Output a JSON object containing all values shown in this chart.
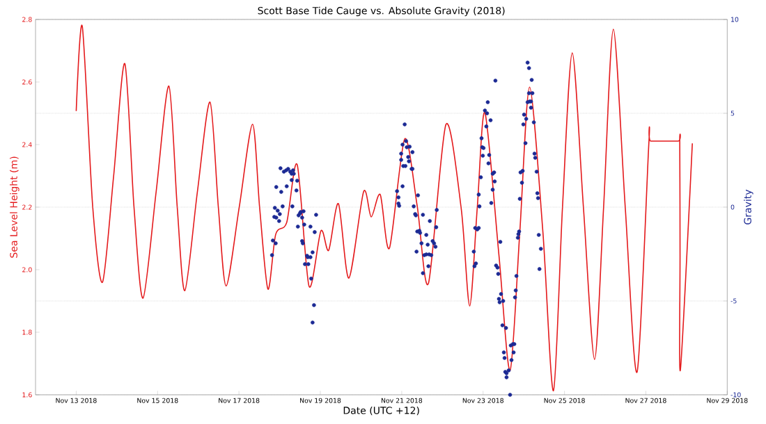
{
  "chart_data": {
    "type": "line",
    "title": "Scott Base Tide Cauge vs. Absolute Gravity (2018)",
    "xlabel": "Date (UTC +12)",
    "ylabel": "Sea Level Height (m)",
    "y2label": "Gravity",
    "xlim": [
      "2018-11-12",
      "2018-11-29"
    ],
    "xticks": [
      {
        "value": "2018-11-13",
        "label": "Nov 13 2018"
      },
      {
        "value": "2018-11-15",
        "label": "Nov 15 2018"
      },
      {
        "value": "2018-11-17",
        "label": "Nov 17 2018"
      },
      {
        "value": "2018-11-19",
        "label": "Nov 19 2018"
      },
      {
        "value": "2018-11-21",
        "label": "Nov 21 2018"
      },
      {
        "value": "2018-11-23",
        "label": "Nov 23 2018"
      },
      {
        "value": "2018-11-25",
        "label": "Nov 25 2018"
      },
      {
        "value": "2018-11-27",
        "label": "Nov 27 2018"
      },
      {
        "value": "2018-11-29",
        "label": "Nov 29 2018"
      }
    ],
    "ylim": [
      1.6,
      2.8
    ],
    "yticks": [
      1.6,
      1.8,
      {
        "value": 2.0,
        "label": "2.0"
      },
      2.2,
      2.4,
      2.6,
      2.8
    ],
    "y2lim": [
      -10,
      10
    ],
    "y2ticks": [
      -10,
      -5,
      0,
      5,
      10
    ],
    "grid": "y",
    "legend": false,
    "line_style": "solid",
    "series": [
      {
        "color": "#e41a1c",
        "marker": "none",
        "x": [
          "2018-11-13T00:00",
          "2018-11-13T03:35",
          "2018-11-13T09:45",
          "2018-11-13T15:30",
          "2018-11-13T22:05",
          "2018-11-14T04:40",
          "2018-11-14T10:05",
          "2018-11-14T15:25",
          "2018-11-14T23:10",
          "2018-11-15T06:40",
          "2018-11-15T11:35",
          "2018-11-15T16:05",
          "2018-11-15T23:30",
          "2018-11-16T06:55",
          "2018-11-16T11:50",
          "2018-11-16T16:25",
          "2018-11-17T00:10",
          "2018-11-17T08:00",
          "2018-11-17T12:10",
          "2018-11-17T17:05",
          "2018-11-17T21:40",
          "2018-11-18T04:10",
          "2018-11-18T10:20",
          "2018-11-18T17:20",
          "2018-11-19T00:20",
          "2018-11-19T04:55",
          "2018-11-19T10:40",
          "2018-11-19T16:50",
          "2018-11-20T01:30",
          "2018-11-20T06:00",
          "2018-11-20T11:20",
          "2018-11-20T16:45",
          "2018-11-21T01:45",
          "2018-11-21T09:10",
          "2018-11-21T15:45",
          "2018-11-22T02:05",
          "2018-11-22T11:05",
          "2018-11-22T16:05",
          "2018-11-22T20:35",
          "2018-11-23T01:05",
          "2018-11-23T09:20",
          "2018-11-23T15:55",
          "2018-11-23T21:40",
          "2018-11-24T03:25",
          "2018-11-24T11:15",
          "2018-11-24T17:30",
          "2018-11-24T22:50",
          "2018-11-25T04:35",
          "2018-11-25T11:10",
          "2018-11-25T17:45",
          "2018-11-25T23:05",
          "2018-11-26T04:50",
          "2018-11-26T11:50",
          "2018-11-26T18:50",
          "2018-11-27T01:50",
          "2018-11-27T03:00",
          "2018-11-27T19:00",
          "2018-11-27T20:00",
          "2018-11-27T20:10",
          "2018-11-27T20:25",
          "2018-11-28T03:25"
        ],
        "values": [
          2.507,
          2.778,
          2.2,
          1.96,
          2.3,
          2.659,
          2.2,
          1.909,
          2.25,
          2.587,
          2.2,
          1.933,
          2.25,
          2.536,
          2.2,
          1.948,
          2.2,
          2.465,
          2.2,
          1.938,
          2.113,
          2.151,
          2.336,
          1.947,
          2.124,
          2.062,
          2.211,
          1.973,
          2.249,
          2.169,
          2.24,
          2.069,
          2.418,
          2.202,
          1.956,
          2.464,
          2.196,
          1.884,
          2.2,
          2.502,
          2.047,
          1.678,
          2.122,
          2.584,
          2.122,
          1.613,
          2.2,
          2.693,
          2.2,
          1.713,
          2.2,
          2.769,
          2.2,
          1.673,
          2.411,
          2.411,
          2.411,
          2.411,
          2.05,
          1.682,
          2.404
        ]
      },
      {
        "type": "scatter",
        "axis": "y2",
        "color": "#1c2a94",
        "marker": "circle",
        "x": [
          "2018-11-17T19:30",
          "2018-11-17T20:00",
          "2018-11-17T20:50",
          "2018-11-17T21:10",
          "2018-11-17T22:00",
          "2018-11-17T21:40",
          "2018-11-17T22:00",
          "2018-11-17T22:50",
          "2018-11-17T23:40",
          "2018-11-18T00:05",
          "2018-11-18T00:30",
          "2018-11-18T00:55",
          "2018-11-18T01:45",
          "2018-11-18T02:30",
          "2018-11-18T03:50",
          "2018-11-18T04:10",
          "2018-11-18T05:00",
          "2018-11-18T06:15",
          "2018-11-18T07:05",
          "2018-11-18T07:05",
          "2018-11-18T07:30",
          "2018-11-18T07:55",
          "2018-11-18T08:20",
          "2018-11-18T09:55",
          "2018-11-18T10:20",
          "2018-11-18T10:45",
          "2018-11-18T11:10",
          "2018-11-18T12:00",
          "2018-11-18T12:25",
          "2018-11-18T13:15",
          "2018-11-18T13:15",
          "2018-11-18T13:40",
          "2018-11-18T14:05",
          "2018-11-18T14:30",
          "2018-11-18T14:55",
          "2018-11-18T16:10",
          "2018-11-18T16:35",
          "2018-11-18T16:55",
          "2018-11-18T18:10",
          "2018-11-18T18:10",
          "2018-11-18T18:35",
          "2018-11-18T19:25",
          "2018-11-18T19:25",
          "2018-11-18T20:15",
          "2018-11-18T20:40",
          "2018-11-18T21:30",
          "2018-11-20T21:15",
          "2018-11-20T22:05",
          "2018-11-20T22:05",
          "2018-11-20T22:30",
          "2018-11-20T23:40",
          "2018-11-20T23:40",
          "2018-11-21T00:30",
          "2018-11-21T00:30",
          "2018-11-21T00:55",
          "2018-11-21T01:45",
          "2018-11-21T02:10",
          "2018-11-21T02:35",
          "2018-11-21T03:00",
          "2018-11-21T03:50",
          "2018-11-21T04:15",
          "2018-11-21T04:40",
          "2018-11-21T05:50",
          "2018-11-21T06:20",
          "2018-11-21T06:20",
          "2018-11-21T07:05",
          "2018-11-21T07:55",
          "2018-11-21T08:20",
          "2018-11-21T08:45",
          "2018-11-21T09:10",
          "2018-11-21T09:35",
          "2018-11-21T10:25",
          "2018-11-21T10:50",
          "2018-11-21T11:40",
          "2018-11-21T12:30",
          "2018-11-21T12:30",
          "2018-11-21T13:20",
          "2018-11-21T14:30",
          "2018-11-21T14:30",
          "2018-11-21T15:20",
          "2018-11-21T15:45",
          "2018-11-21T16:10",
          "2018-11-21T16:35",
          "2018-11-21T17:25",
          "2018-11-21T18:15",
          "2018-11-21T19:05",
          "2018-11-21T19:55",
          "2018-11-21T20:20",
          "2018-11-21T20:40",
          "2018-11-22T18:30",
          "2018-11-22T18:55",
          "2018-11-22T19:20",
          "2018-11-22T19:45",
          "2018-11-22T20:35",
          "2018-11-22T21:25",
          "2018-11-22T21:25",
          "2018-11-22T21:50",
          "2018-11-22T22:40",
          "2018-11-22T23:05",
          "2018-11-22T23:30",
          "2018-11-22T23:50",
          "2018-11-23T00:15",
          "2018-11-23T01:05",
          "2018-11-23T01:55",
          "2018-11-23T02:20",
          "2018-11-23T02:45",
          "2018-11-23T03:10",
          "2018-11-23T03:35",
          "2018-11-23T04:25",
          "2018-11-23T04:50",
          "2018-11-23T05:40",
          "2018-11-23T05:40",
          "2018-11-23T06:30",
          "2018-11-23T06:50",
          "2018-11-23T07:15",
          "2018-11-23T07:40",
          "2018-11-23T08:30",
          "2018-11-23T08:55",
          "2018-11-23T09:20",
          "2018-11-23T09:45",
          "2018-11-23T10:10",
          "2018-11-23T10:35",
          "2018-11-23T11:25",
          "2018-11-23T11:50",
          "2018-11-23T12:15",
          "2018-11-23T12:40",
          "2018-11-23T13:05",
          "2018-11-23T13:30",
          "2018-11-23T13:50",
          "2018-11-23T13:50",
          "2018-11-23T15:05",
          "2018-11-23T15:55",
          "2018-11-23T16:20",
          "2018-11-23T16:45",
          "2018-11-23T17:35",
          "2018-11-23T18:00",
          "2018-11-23T18:25",
          "2018-11-23T18:50",
          "2018-11-23T19:15",
          "2018-11-23T19:40",
          "2018-11-23T20:30",
          "2018-11-23T20:50",
          "2018-11-23T21:15",
          "2018-11-23T21:40",
          "2018-11-23T22:05",
          "2018-11-23T22:55",
          "2018-11-23T23:20",
          "2018-11-23T23:45",
          "2018-11-24T00:10",
          "2018-11-24T01:00",
          "2018-11-24T01:25",
          "2018-11-24T02:15",
          "2018-11-24T02:15",
          "2018-11-24T03:05",
          "2018-11-24T03:05",
          "2018-11-24T03:25",
          "2018-11-24T04:15",
          "2018-11-24T04:15",
          "2018-11-24T04:40",
          "2018-11-24T05:05",
          "2018-11-24T05:55",
          "2018-11-24T06:20",
          "2018-11-24T06:45",
          "2018-11-24T07:35",
          "2018-11-24T08:00",
          "2018-11-24T08:25",
          "2018-11-24T08:50",
          "2018-11-24T09:15",
          "2018-11-24T10:05"
        ],
        "values": [
          -2.56,
          -1.78,
          -0.52,
          -0.04,
          1.07,
          -1.93,
          -0.56,
          -0.19,
          -0.74,
          -0.37,
          2.07,
          0.81,
          0.04,
          1.89,
          1.96,
          1.11,
          2.04,
          1.89,
          1.78,
          1.44,
          0.04,
          1.96,
          1.78,
          0.89,
          1.41,
          -1.04,
          -0.44,
          -0.33,
          -0.26,
          -0.56,
          -1.81,
          -1.93,
          -0.22,
          -0.93,
          -3.04,
          -2.59,
          -2.67,
          -3.04,
          -1.04,
          -2.67,
          -3.81,
          -2.41,
          -6.15,
          -5.22,
          -1.33,
          -0.41,
          0.85,
          0.52,
          0.19,
          0.07,
          2.52,
          2.85,
          3.33,
          1.11,
          2.19,
          4.41,
          2.19,
          3.52,
          3.19,
          2.67,
          2.44,
          3.22,
          2.04,
          2.93,
          2.04,
          0.04,
          -0.37,
          -0.44,
          -2.37,
          -1.3,
          0.63,
          -1.26,
          -1.37,
          -1.93,
          -0.41,
          -3.52,
          -2.56,
          -1.48,
          -2.52,
          -2.0,
          -3.15,
          -2.52,
          -0.74,
          -2.56,
          -1.81,
          -1.93,
          -2.11,
          -1.07,
          -0.15,
          -2.37,
          -3.15,
          -1.11,
          -3.0,
          -1.19,
          -1.11,
          0.67,
          0.04,
          1.59,
          3.67,
          3.19,
          2.74,
          3.15,
          5.15,
          4.3,
          5.0,
          5.59,
          2.33,
          2.78,
          4.63,
          0.22,
          1.78,
          0.93,
          1.85,
          1.37,
          6.74,
          -3.11,
          -3.22,
          -3.56,
          -4.89,
          -5.07,
          -1.85,
          -4.63,
          -6.3,
          -5.0,
          -7.74,
          -8.04,
          -8.78,
          -6.44,
          -8.85,
          -9.07,
          -8.7,
          -10,
          -7.37,
          -8.15,
          -7.3,
          -7.74,
          -7.3,
          -4.81,
          -4.44,
          -3.67,
          -1.63,
          -1.44,
          -1.3,
          0.44,
          1.85,
          1.3,
          1.93,
          4.41,
          4.93,
          3.41,
          4.7,
          5.59,
          7.7,
          6.07,
          7.41,
          5.63,
          5.63,
          5.3,
          6.78,
          6.07,
          4.52,
          2.85,
          2.63,
          1.89,
          0.74,
          0.48,
          -1.48,
          -3.3,
          -2.22
        ]
      }
    ]
  }
}
